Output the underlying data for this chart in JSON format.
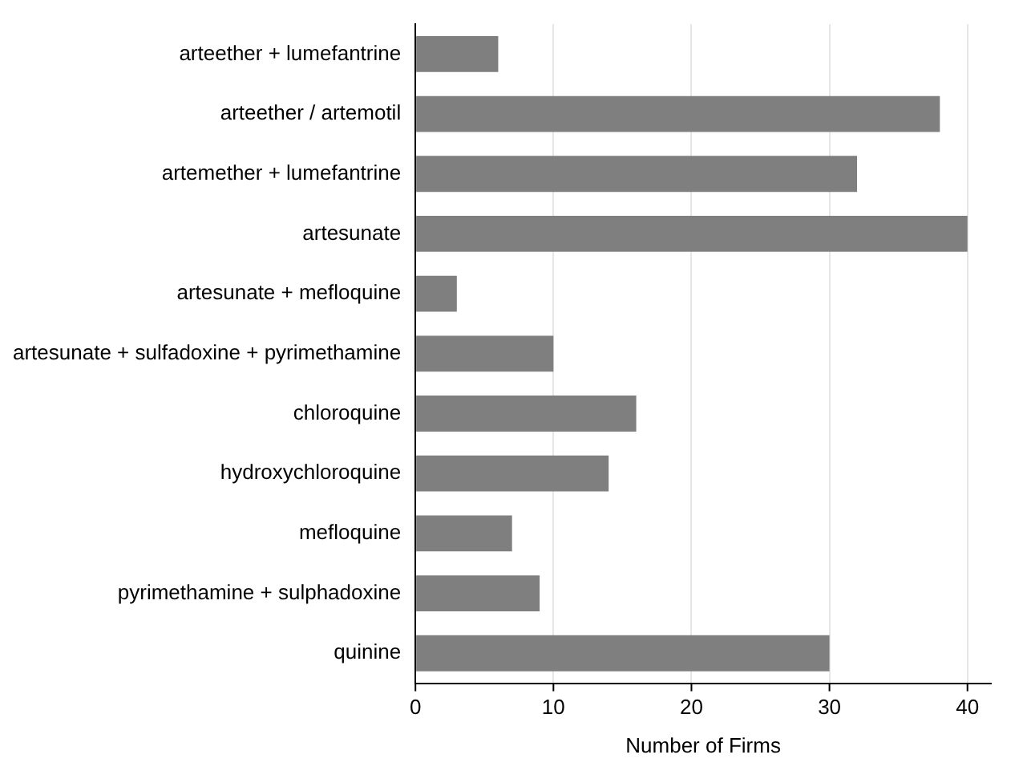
{
  "chart_data": {
    "type": "bar",
    "orientation": "horizontal",
    "xlabel": "Number of Firms",
    "categories": [
      "arteether + lumefantrine",
      "arteether / artemotil",
      "artemether + lumefantrine",
      "artesunate",
      "artesunate + mefloquine",
      "artesunate + sulfadoxine + pyrimethamine",
      "chloroquine",
      "hydroxychloroquine",
      "mefloquine",
      "pyrimethamine + sulphadoxine",
      "quinine"
    ],
    "values": [
      6,
      38,
      32,
      40,
      3,
      10,
      16,
      14,
      7,
      9,
      30
    ],
    "color": "#7f7f7f",
    "xlim": [
      0,
      41.7
    ],
    "xticks": [
      0,
      10,
      20,
      30,
      40
    ],
    "grid": "x",
    "legend": false
  }
}
